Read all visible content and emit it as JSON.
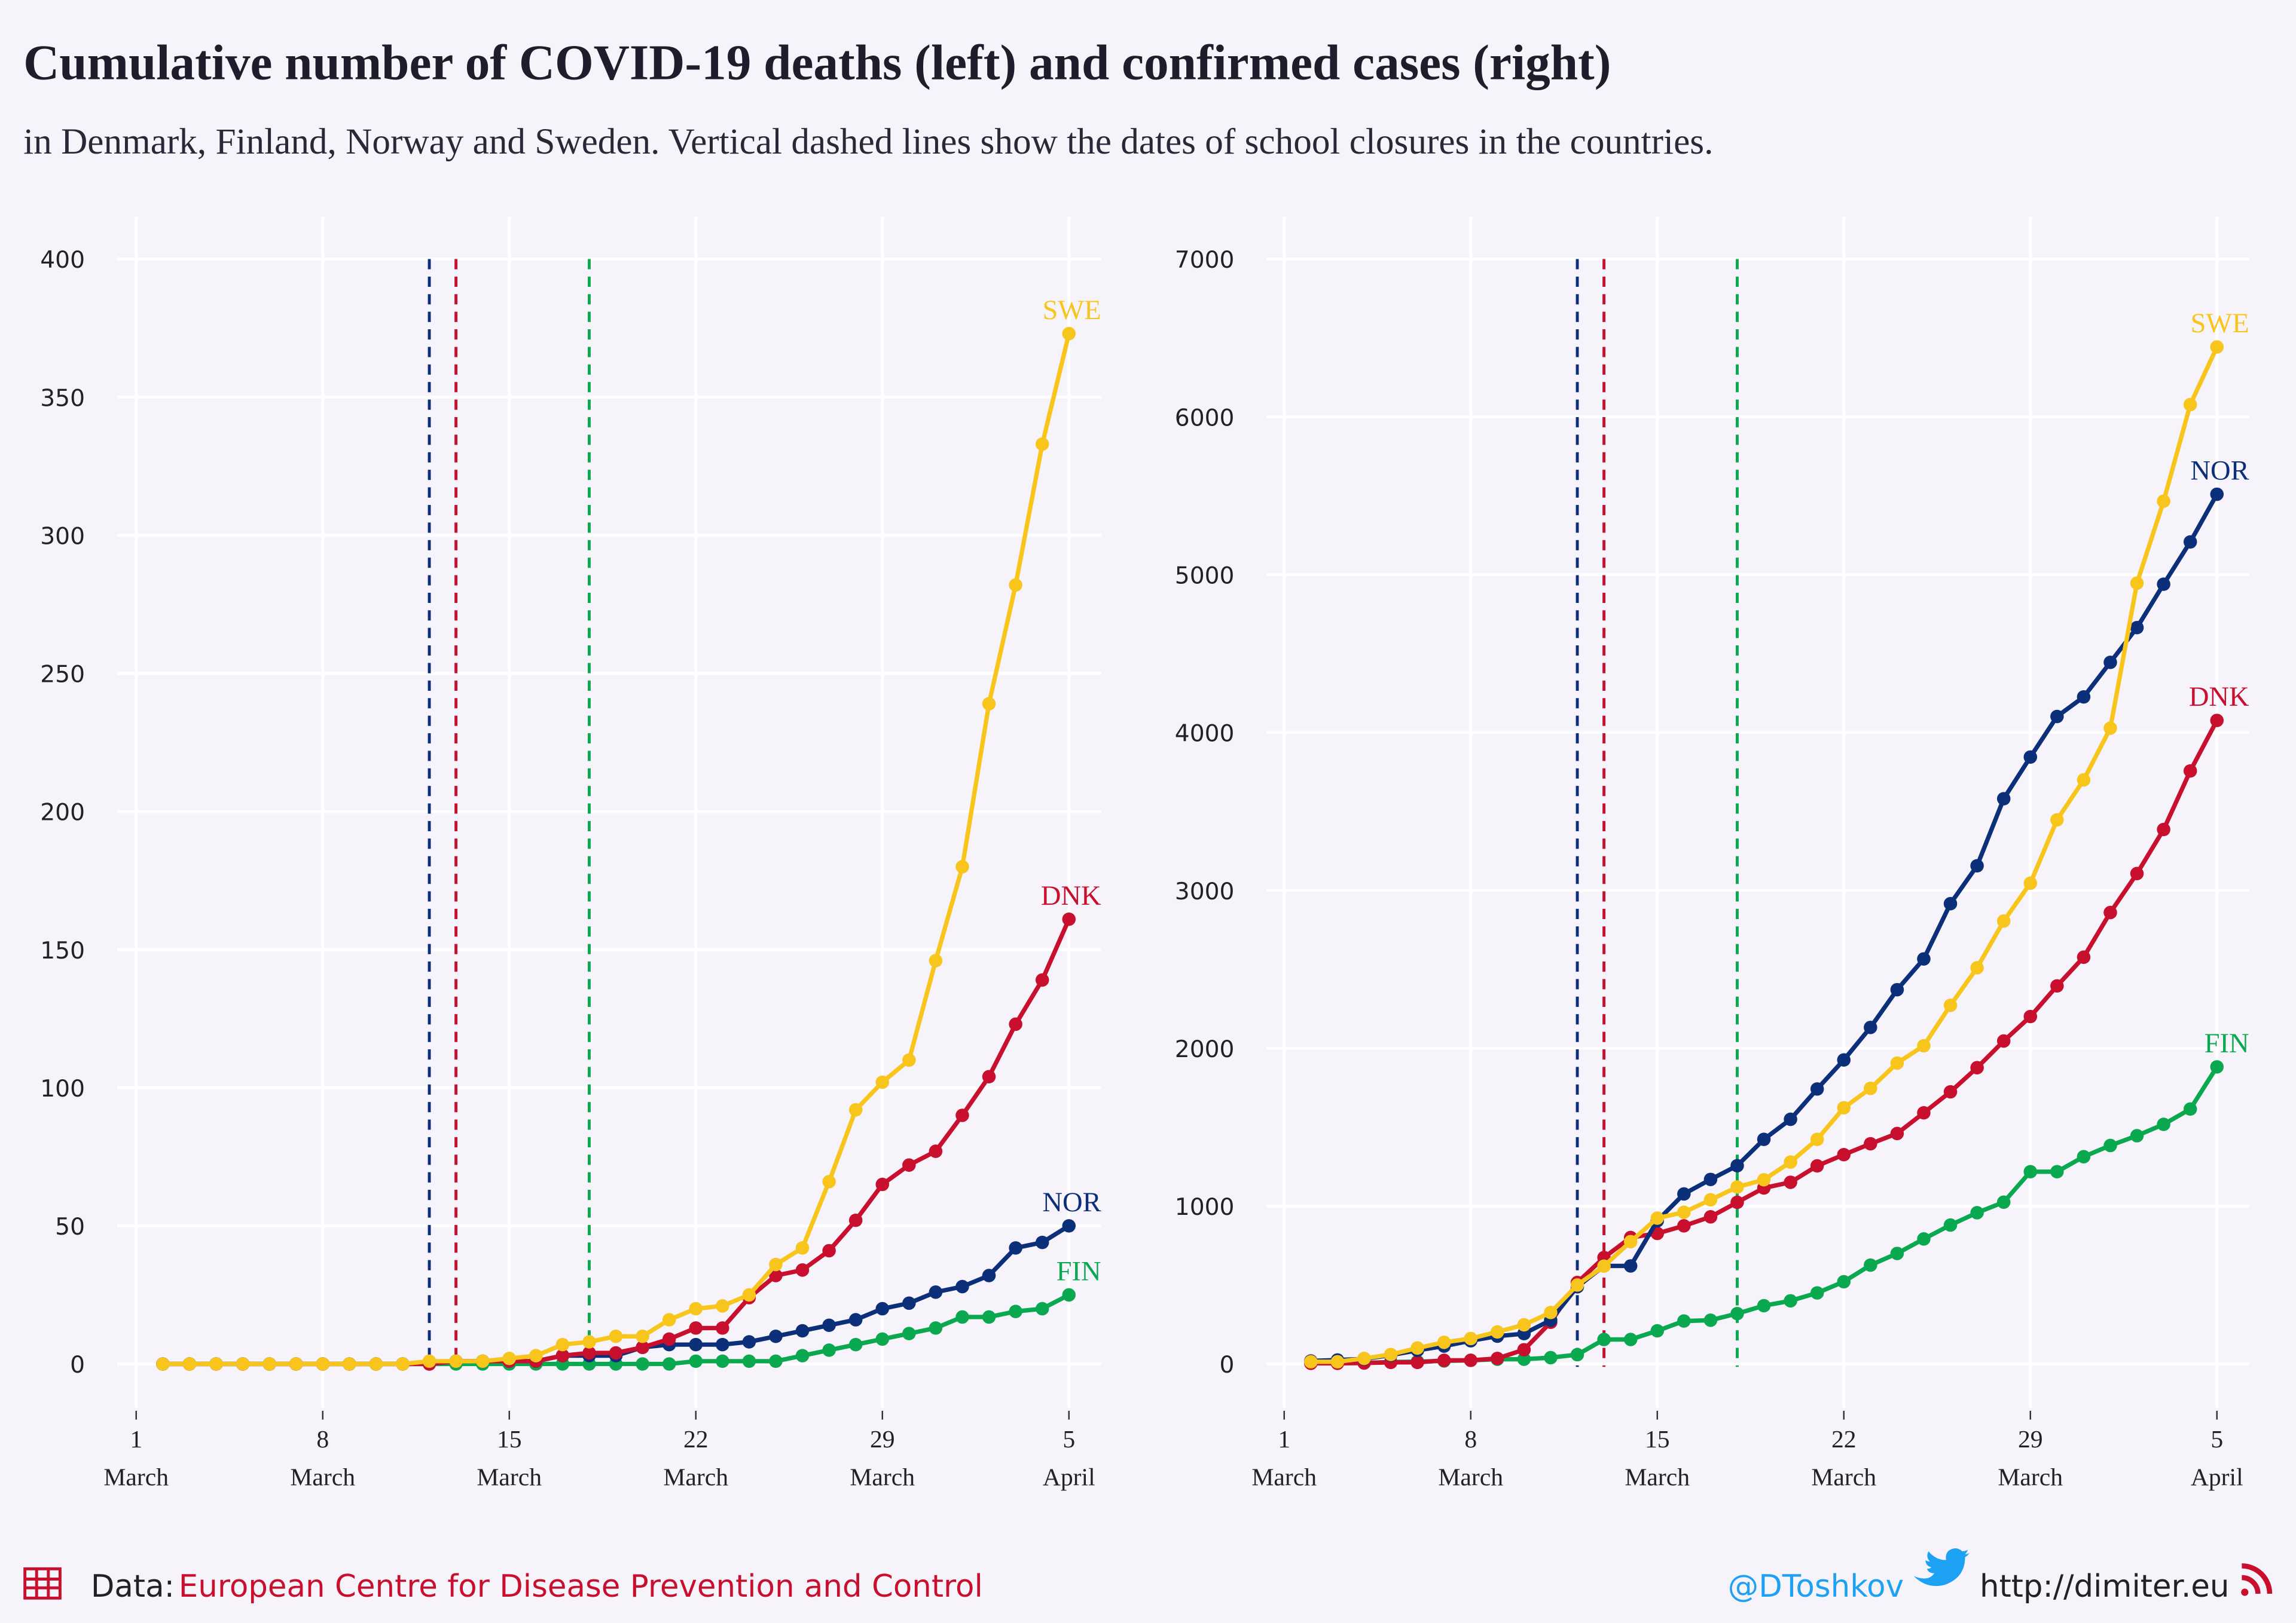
{
  "title": "Cumulative number of COVID-19 deaths (left) and confirmed cases (right)",
  "subtitle": "in Denmark, Finland, Norway and Sweden. Vertical dashed lines show the dates of school closures in the countries.",
  "footer": {
    "source_prefix": "Data:",
    "source": "European Centre for Disease Prevention and Control",
    "twitter": "@DToshkov",
    "website": "http://dimiter.eu"
  },
  "chart_data": [
    {
      "type": "line",
      "grid": true,
      "x": [
        "03-02",
        "03-03",
        "03-04",
        "03-05",
        "03-06",
        "03-07",
        "03-08",
        "03-09",
        "03-10",
        "03-11",
        "03-12",
        "03-13",
        "03-14",
        "03-15",
        "03-16",
        "03-17",
        "03-18",
        "03-19",
        "03-20",
        "03-21",
        "03-22",
        "03-23",
        "03-24",
        "03-25",
        "03-26",
        "03-27",
        "03-28",
        "03-29",
        "03-30",
        "03-31",
        "04-01",
        "04-02",
        "04-03",
        "04-04",
        "04-05"
      ],
      "xlim": [
        "03-01",
        "04-05"
      ],
      "xticks": [
        {
          "value": "03-01",
          "label": "1",
          "month": "March"
        },
        {
          "value": "03-08",
          "label": "8",
          "month": "March"
        },
        {
          "value": "03-15",
          "label": "15",
          "month": "March"
        },
        {
          "value": "03-22",
          "label": "22",
          "month": "March"
        },
        {
          "value": "03-29",
          "label": "29",
          "month": "March"
        },
        {
          "value": "04-05",
          "label": "5",
          "month": "April"
        }
      ],
      "ylim": [
        0,
        400
      ],
      "yticks": [
        0,
        50,
        100,
        150,
        200,
        250,
        300,
        350,
        400
      ],
      "series": [
        {
          "name": "SWE",
          "color": "#f8c51c",
          "values": [
            0,
            0,
            0,
            0,
            0,
            0,
            0,
            0,
            0,
            0,
            1,
            1,
            1,
            2,
            3,
            7,
            8,
            10,
            10,
            16,
            20,
            21,
            25,
            36,
            42,
            66,
            92,
            102,
            110,
            146,
            180,
            239,
            282,
            333,
            373
          ]
        },
        {
          "name": "DNK",
          "color": "#c8102e",
          "school_closure": "03-13",
          "values": [
            0,
            0,
            0,
            0,
            0,
            0,
            0,
            0,
            0,
            0,
            0,
            1,
            1,
            1,
            1,
            3,
            4,
            4,
            6,
            9,
            13,
            13,
            24,
            32,
            34,
            41,
            52,
            65,
            72,
            77,
            90,
            104,
            123,
            139,
            161
          ]
        },
        {
          "name": "NOR",
          "color": "#0c2f7a",
          "school_closure": "03-12",
          "values": [
            0,
            0,
            0,
            0,
            0,
            0,
            0,
            0,
            0,
            0,
            0,
            1,
            1,
            1,
            1,
            3,
            3,
            3,
            6,
            7,
            7,
            7,
            8,
            10,
            12,
            14,
            16,
            20,
            22,
            26,
            28,
            32,
            42,
            44,
            50
          ]
        },
        {
          "name": "FIN",
          "color": "#0aa84f",
          "school_closure": "03-18",
          "values": [
            0,
            0,
            0,
            0,
            0,
            0,
            0,
            0,
            0,
            0,
            0,
            0,
            0,
            0,
            0,
            0,
            0,
            0,
            0,
            0,
            1,
            1,
            1,
            1,
            3,
            5,
            7,
            9,
            11,
            13,
            17,
            17,
            19,
            20,
            25
          ]
        }
      ]
    },
    {
      "type": "line",
      "grid": true,
      "x": [
        "03-02",
        "03-03",
        "03-04",
        "03-05",
        "03-06",
        "03-07",
        "03-08",
        "03-09",
        "03-10",
        "03-11",
        "03-12",
        "03-13",
        "03-14",
        "03-15",
        "03-16",
        "03-17",
        "03-18",
        "03-19",
        "03-20",
        "03-21",
        "03-22",
        "03-23",
        "03-24",
        "03-25",
        "03-26",
        "03-27",
        "03-28",
        "03-29",
        "03-30",
        "03-31",
        "04-01",
        "04-02",
        "04-03",
        "04-04",
        "04-05"
      ],
      "xlim": [
        "03-01",
        "04-05"
      ],
      "xticks": [
        {
          "value": "03-01",
          "label": "1",
          "month": "March"
        },
        {
          "value": "03-08",
          "label": "8",
          "month": "March"
        },
        {
          "value": "03-15",
          "label": "15",
          "month": "March"
        },
        {
          "value": "03-22",
          "label": "22",
          "month": "March"
        },
        {
          "value": "03-29",
          "label": "29",
          "month": "March"
        },
        {
          "value": "04-05",
          "label": "5",
          "month": "April"
        }
      ],
      "ylim": [
        0,
        7000
      ],
      "yticks": [
        0,
        1000,
        2000,
        3000,
        4000,
        5000,
        6000,
        7000
      ],
      "series": [
        {
          "name": "SWE",
          "color": "#f8c51c",
          "values": [
            14,
            14,
            35,
            60,
            101,
            137,
            161,
            203,
            248,
            326,
            500,
            620,
            775,
            924,
            961,
            1040,
            1121,
            1167,
            1279,
            1423,
            1623,
            1746,
            1906,
            2016,
            2272,
            2510,
            2806,
            3046,
            3447,
            3700,
            4028,
            4947,
            5466,
            6078,
            6443
          ]
        },
        {
          "name": "NOR",
          "color": "#0c2f7a",
          "school_closure": "03-12",
          "values": [
            19,
            25,
            32,
            56,
            86,
            113,
            147,
            176,
            192,
            277,
            489,
            621,
            621,
            907,
            1077,
            1169,
            1256,
            1423,
            1550,
            1742,
            1926,
            2132,
            2371,
            2566,
            2916,
            3156,
            3581,
            3845,
            4102,
            4226,
            4445,
            4665,
            4940,
            5208,
            5510
          ]
        },
        {
          "name": "DNK",
          "color": "#c8102e",
          "school_closure": "03-13",
          "values": [
            4,
            4,
            6,
            10,
            10,
            23,
            23,
            35,
            90,
            264,
            516,
            674,
            801,
            827,
            875,
            932,
            1024,
            1115,
            1151,
            1255,
            1326,
            1395,
            1460,
            1591,
            1724,
            1877,
            2046,
            2201,
            2395,
            2577,
            2860,
            3107,
            3386,
            3757,
            4077
          ]
        },
        {
          "name": "FIN",
          "color": "#0aa84f",
          "school_closure": "03-18",
          "values": [
            6,
            6,
            7,
            12,
            15,
            19,
            23,
            30,
            30,
            40,
            59,
            155,
            155,
            210,
            272,
            277,
            319,
            369,
            400,
            450,
            521,
            626,
            700,
            792,
            880,
            958,
            1025,
            1218,
            1218,
            1313,
            1384,
            1446,
            1518,
            1615,
            1882
          ]
        }
      ]
    }
  ]
}
